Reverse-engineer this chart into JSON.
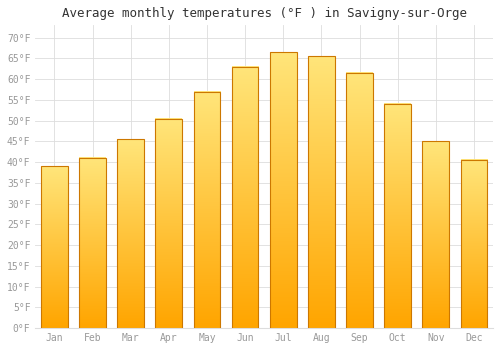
{
  "title": "Average monthly temperatures (°F ) in Savigny-sur-Orge",
  "months": [
    "Jan",
    "Feb",
    "Mar",
    "Apr",
    "May",
    "Jun",
    "Jul",
    "Aug",
    "Sep",
    "Oct",
    "Nov",
    "Dec"
  ],
  "values": [
    39,
    41,
    45.5,
    50.5,
    57,
    63,
    66.5,
    65.5,
    61.5,
    54,
    45,
    40.5
  ],
  "bar_color_top": "#FFE57A",
  "bar_color_bottom": "#FFA500",
  "bar_edge_color": "#CC7700",
  "background_color": "#FFFFFF",
  "grid_color": "#DDDDDD",
  "ytick_labels": [
    "0°F",
    "5°F",
    "10°F",
    "15°F",
    "20°F",
    "25°F",
    "30°F",
    "35°F",
    "40°F",
    "45°F",
    "50°F",
    "55°F",
    "60°F",
    "65°F",
    "70°F"
  ],
  "ytick_values": [
    0,
    5,
    10,
    15,
    20,
    25,
    30,
    35,
    40,
    45,
    50,
    55,
    60,
    65,
    70
  ],
  "ylim": [
    0,
    73
  ],
  "title_fontsize": 9,
  "tick_fontsize": 7,
  "tick_color": "#999999"
}
